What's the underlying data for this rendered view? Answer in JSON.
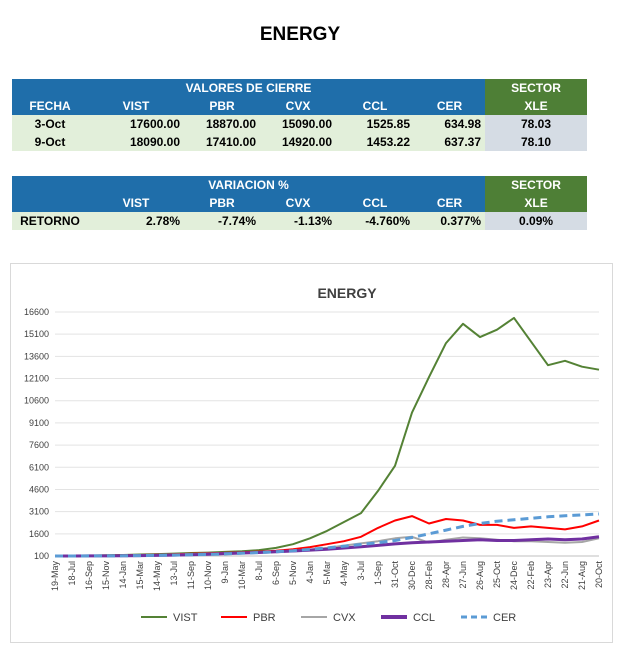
{
  "page_title": "ENERGY",
  "table1": {
    "section_title": "VALORES DE CIERRE",
    "sector_title": "SECTOR",
    "columns": [
      "FECHA",
      "VIST",
      "PBR",
      "CVX",
      "CCL",
      "CER",
      "XLE"
    ],
    "rows": [
      [
        "3-Oct",
        "17600.00",
        "18870.00",
        "15090.00",
        "1525.85",
        "634.98",
        "78.03"
      ],
      [
        "9-Oct",
        "18090.00",
        "17410.00",
        "14920.00",
        "1453.22",
        "637.37",
        "78.10"
      ]
    ]
  },
  "table2": {
    "section_title": "VARIACION %",
    "sector_title": "SECTOR",
    "columns": [
      "",
      "VIST",
      "PBR",
      "CVX",
      "CCL",
      "CER",
      "XLE"
    ],
    "rows": [
      [
        "RETORNO",
        "2.78%",
        "-7.74%",
        "-1.13%",
        "-4.760%",
        "0.377%",
        "0.09%"
      ]
    ]
  },
  "colors": {
    "VIST": "#548235",
    "PBR": "#ff0000",
    "CVX": "#a6a6a6",
    "CCL": "#7030a0",
    "CER": "#5b9bd5"
  },
  "chart_data": {
    "type": "line",
    "title": "ENERGY",
    "ylim": [
      100,
      16600
    ],
    "yticks": [
      100,
      1600,
      3100,
      4600,
      6100,
      7600,
      9100,
      10600,
      12100,
      13600,
      15100,
      16600
    ],
    "x_tick_labels": [
      "19-May",
      "18-Jul",
      "16-Sep",
      "15-Nov",
      "14-Jan",
      "15-Mar",
      "14-May",
      "13-Jul",
      "11-Sep",
      "10-Nov",
      "9-Jan",
      "10-Mar",
      "8-Jul",
      "6-Sep",
      "5-Nov",
      "4-Jan",
      "5-Mar",
      "4-May",
      "3-Jul",
      "1-Sep",
      "31-Oct",
      "30-Dec",
      "28-Feb",
      "28-Apr",
      "27-Jun",
      "26-Aug",
      "25-Oct",
      "24-Dec",
      "22-Feb",
      "23-Apr",
      "22-Jun",
      "21-Aug",
      "20-Oct"
    ],
    "x": [
      "19-May",
      "18-Jul",
      "16-Sep",
      "15-Nov",
      "14-Jan",
      "15-Mar",
      "14-May",
      "13-Jul",
      "11-Sep",
      "10-Nov",
      "9-Jan",
      "10-Mar",
      "8-Jul",
      "6-Sep",
      "5-Nov",
      "4-Jan",
      "5-Mar",
      "4-May",
      "3-Jul",
      "1-Sep",
      "31-Oct",
      "30-Dec",
      "28-Feb",
      "28-Apr",
      "27-Jun",
      "26-Aug",
      "25-Oct",
      "24-Dec",
      "22-Feb",
      "23-Apr",
      "22-Jun",
      "21-Aug",
      "20-Oct"
    ],
    "series": [
      {
        "name": "VIST",
        "values": [
          100,
          110,
          130,
          150,
          170,
          200,
          230,
          260,
          300,
          330,
          380,
          420,
          500,
          650,
          900,
          1300,
          1800,
          2400,
          3000,
          4500,
          6200,
          9800,
          12200,
          14500,
          15800,
          14900,
          15400,
          16200,
          14600,
          13000,
          13300,
          12900,
          12700
        ]
      },
      {
        "name": "PBR",
        "values": [
          100,
          110,
          120,
          130,
          150,
          170,
          190,
          220,
          250,
          280,
          310,
          350,
          400,
          460,
          560,
          700,
          900,
          1100,
          1400,
          2000,
          2500,
          2800,
          2300,
          2600,
          2500,
          2200,
          2200,
          2000,
          2100,
          2000,
          1900,
          2100,
          2500
        ]
      },
      {
        "name": "CVX",
        "values": [
          100,
          105,
          110,
          120,
          130,
          150,
          170,
          200,
          230,
          260,
          290,
          320,
          350,
          400,
          460,
          540,
          650,
          800,
          950,
          1100,
          1300,
          1400,
          1000,
          1200,
          1350,
          1300,
          1200,
          1100,
          1100,
          1050,
          1000,
          1050,
          1300
        ]
      },
      {
        "name": "CCL",
        "values": [
          100,
          102,
          105,
          110,
          115,
          125,
          140,
          160,
          190,
          220,
          260,
          300,
          340,
          390,
          440,
          500,
          560,
          640,
          720,
          820,
          920,
          1000,
          1050,
          1100,
          1150,
          1200,
          1150,
          1150,
          1200,
          1250,
          1200,
          1250,
          1400
        ]
      },
      {
        "name": "CER",
        "values": [
          100,
          102,
          105,
          110,
          115,
          125,
          140,
          160,
          180,
          210,
          240,
          280,
          330,
          390,
          460,
          550,
          650,
          760,
          880,
          1000,
          1150,
          1350,
          1600,
          1850,
          2100,
          2300,
          2450,
          2550,
          2650,
          2750,
          2820,
          2880,
          2940
        ]
      }
    ],
    "legend": [
      "VIST",
      "PBR",
      "CVX",
      "CCL",
      "CER"
    ],
    "legend_position": "bottom"
  }
}
